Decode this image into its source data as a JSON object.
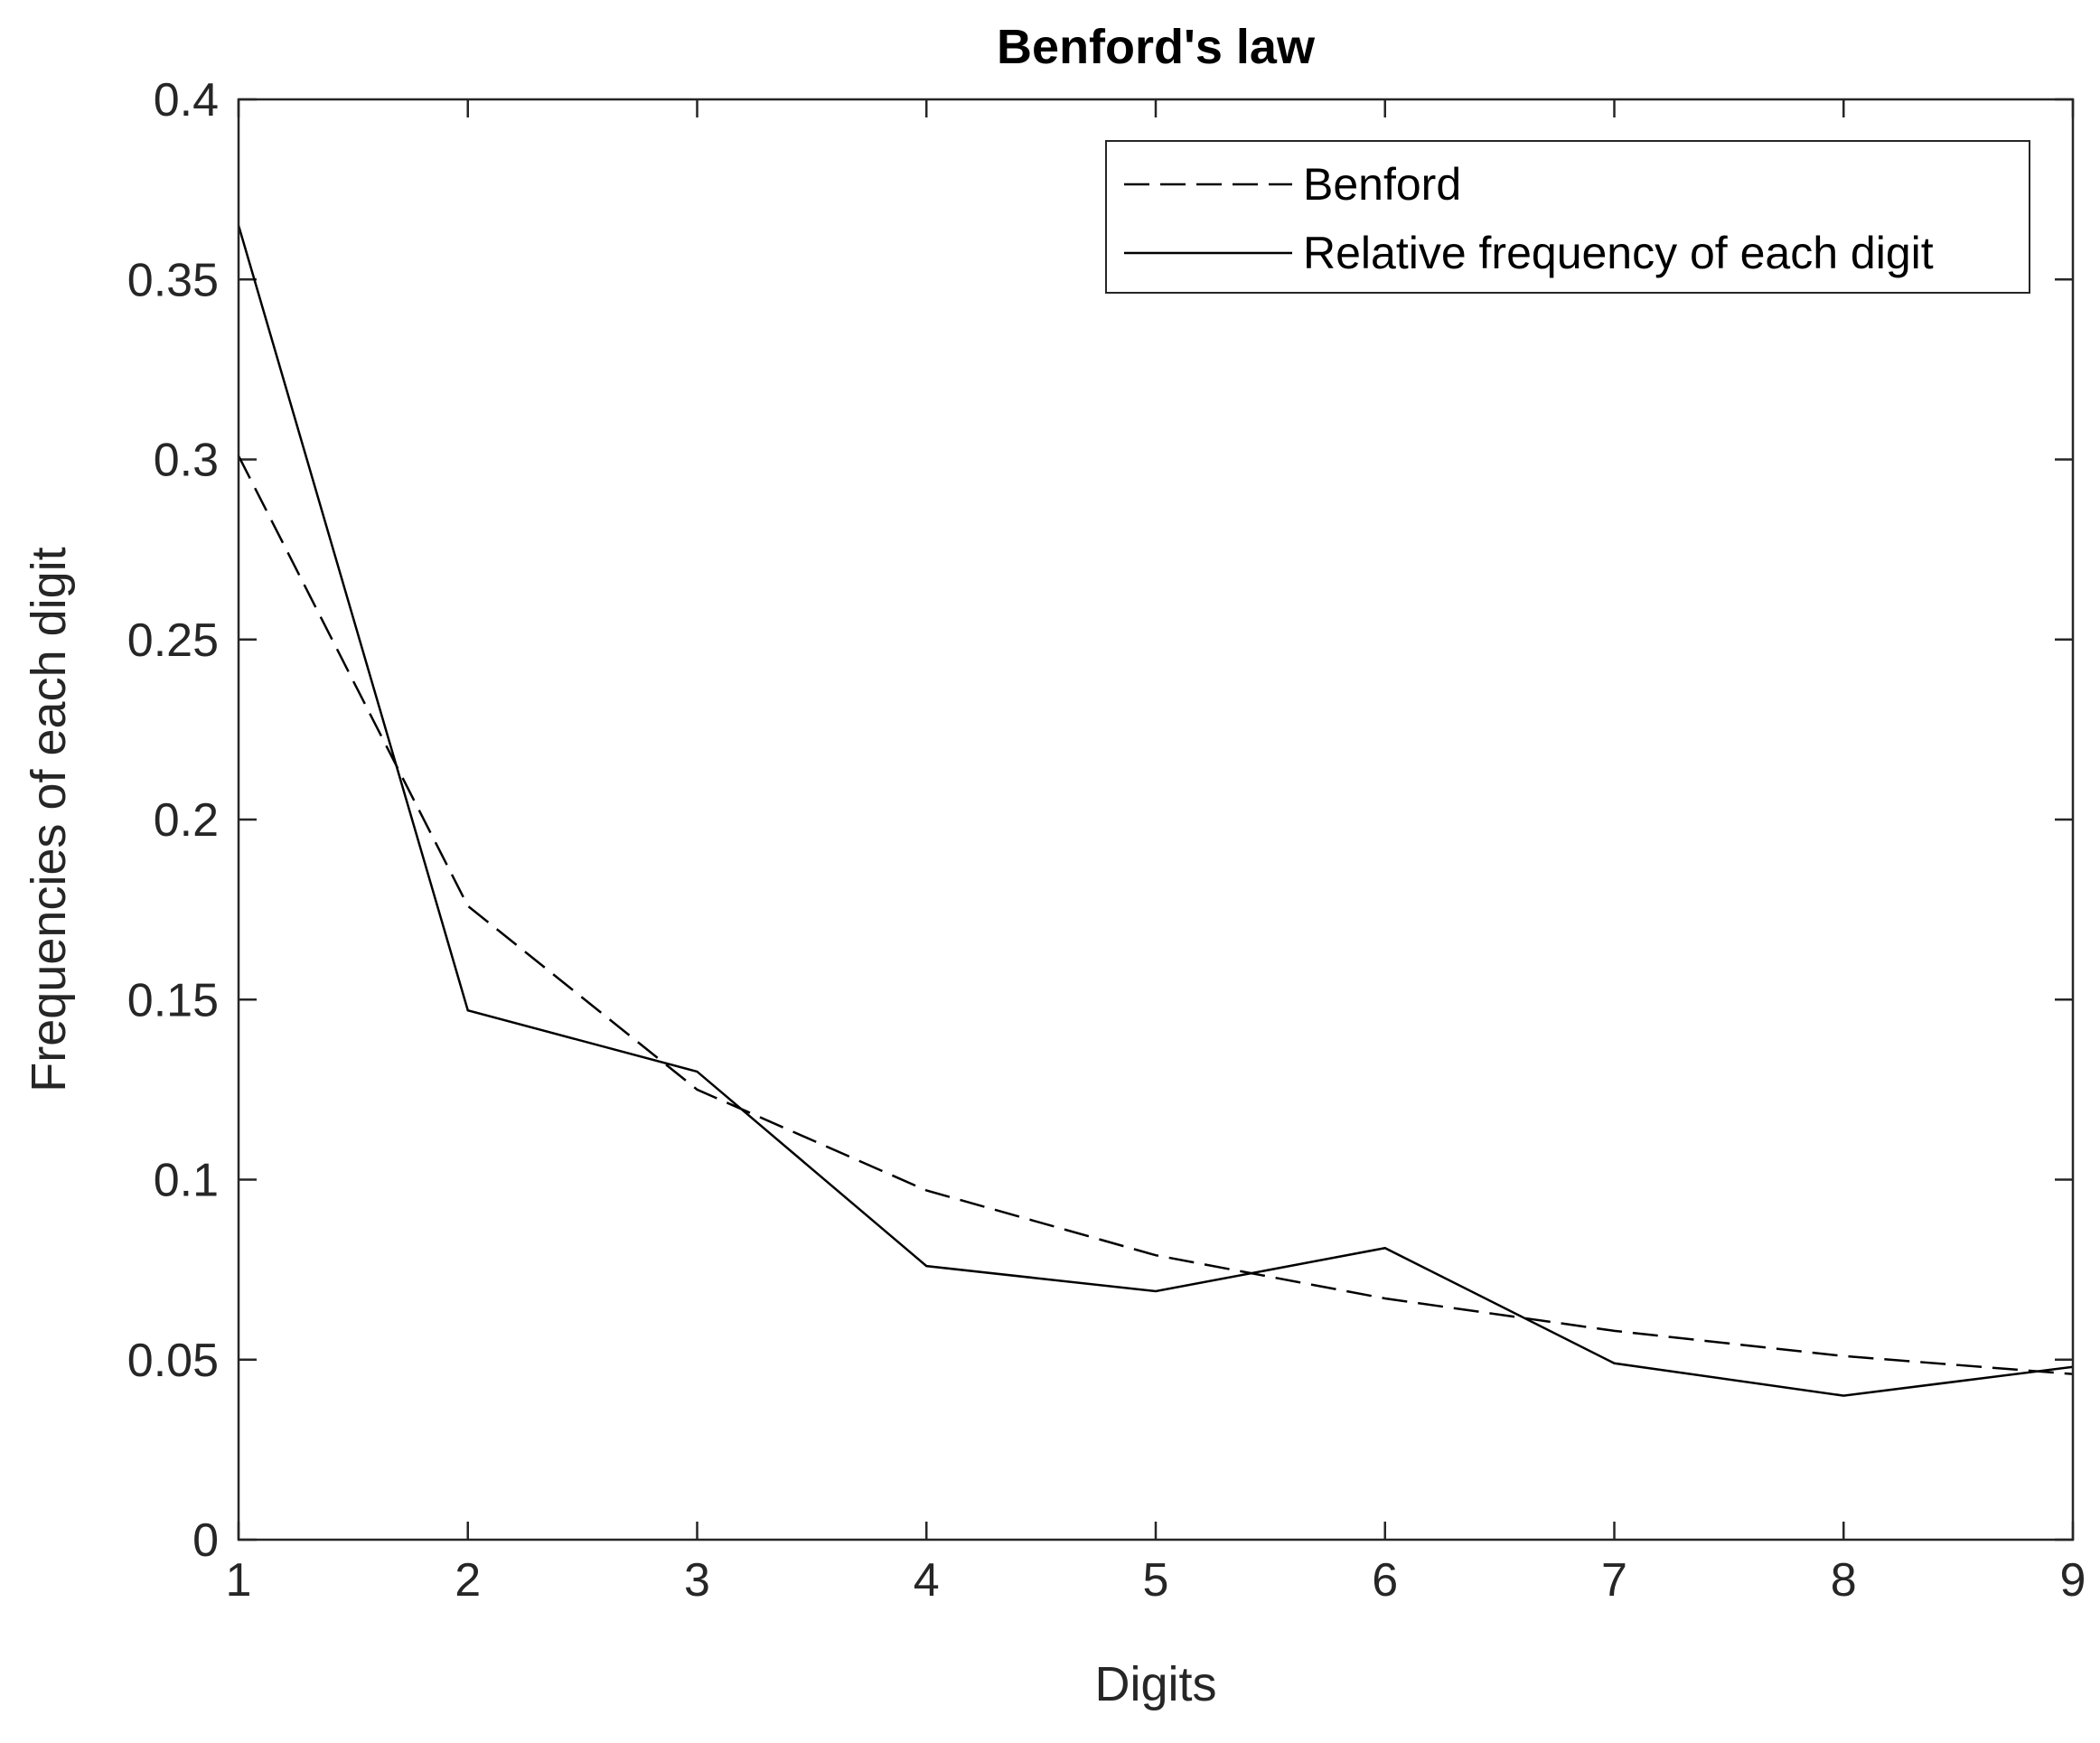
{
  "chart_data": {
    "type": "line",
    "title": "Benford's law",
    "xlabel": "Digits",
    "ylabel": "Frequencies of each digit",
    "xlim": [
      1,
      9
    ],
    "ylim": [
      0,
      0.4
    ],
    "x_ticks": [
      1,
      2,
      3,
      4,
      5,
      6,
      7,
      8,
      9
    ],
    "y_ticks": [
      0,
      0.05,
      0.1,
      0.15,
      0.2,
      0.25,
      0.3,
      0.35,
      0.4
    ],
    "x_tick_labels": [
      "1",
      "2",
      "3",
      "4",
      "5",
      "6",
      "7",
      "8",
      "9"
    ],
    "y_tick_labels": [
      "0",
      "0.05",
      "0.1",
      "0.15",
      "0.2",
      "0.25",
      "0.3",
      "0.35",
      "0.4"
    ],
    "x": [
      1,
      2,
      3,
      4,
      5,
      6,
      7,
      8,
      9
    ],
    "grid": false,
    "legend_position": "top-right",
    "series": [
      {
        "name": "Benford",
        "style": "dashed",
        "color": "#000000",
        "values": [
          0.301,
          0.176,
          0.125,
          0.097,
          0.079,
          0.067,
          0.058,
          0.051,
          0.046
        ]
      },
      {
        "name": "Relative frequency of each digit",
        "style": "solid",
        "color": "#000000",
        "values": [
          0.365,
          0.147,
          0.13,
          0.076,
          0.069,
          0.081,
          0.049,
          0.04,
          0.048
        ]
      }
    ]
  },
  "colors": {
    "axis": "#262626",
    "text": "#262626",
    "series": "#000000",
    "background": "#ffffff"
  }
}
